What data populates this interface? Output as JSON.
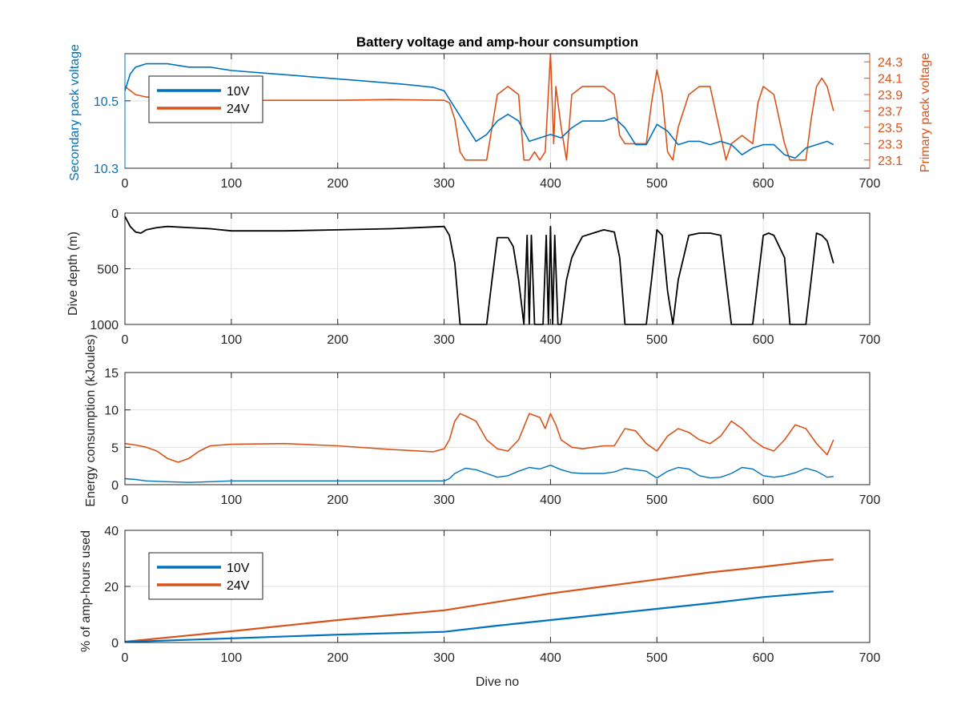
{
  "colors": {
    "v10": "#0072BD",
    "v24": "#D95319",
    "depth": "#000000"
  },
  "chart_data": [
    {
      "type": "line",
      "title": "Battery voltage and amp-hour consumption",
      "xlabel": "",
      "xlim": [
        0,
        700
      ],
      "xticks": [
        "0",
        "100",
        "200",
        "300",
        "400",
        "500",
        "600",
        "700"
      ],
      "ylabel_left": "Secondary pack voltage",
      "ylim_left": [
        10.3,
        10.64
      ],
      "yticks_left": [
        "10.3",
        "10.5"
      ],
      "ylabel_right": "Primary pack voltage",
      "ylim_right": [
        23.0,
        24.4
      ],
      "yticks_right": [
        "23.1",
        "23.3",
        "23.5",
        "23.7",
        "23.9",
        "24.1",
        "24.3"
      ],
      "legend": {
        "placement": "top-left",
        "entries": [
          "10V",
          "24V"
        ]
      },
      "grid": true,
      "series": [
        {
          "name": "10V",
          "axis": "left",
          "x": [
            0,
            5,
            10,
            20,
            40,
            60,
            80,
            100,
            140,
            180,
            220,
            260,
            290,
            300,
            310,
            320,
            330,
            340,
            350,
            360,
            370,
            380,
            390,
            400,
            410,
            420,
            430,
            440,
            450,
            460,
            470,
            480,
            490,
            500,
            510,
            520,
            530,
            540,
            550,
            560,
            570,
            580,
            590,
            600,
            610,
            620,
            630,
            640,
            650,
            660,
            666
          ],
          "y": [
            10.53,
            10.58,
            10.6,
            10.61,
            10.61,
            10.6,
            10.6,
            10.59,
            10.58,
            10.57,
            10.56,
            10.55,
            10.54,
            10.53,
            10.48,
            10.43,
            10.38,
            10.4,
            10.44,
            10.46,
            10.44,
            10.38,
            10.39,
            10.4,
            10.39,
            10.42,
            10.44,
            10.44,
            10.44,
            10.45,
            10.42,
            10.37,
            10.37,
            10.43,
            10.41,
            10.37,
            10.38,
            10.38,
            10.37,
            10.38,
            10.37,
            10.34,
            10.36,
            10.37,
            10.37,
            10.34,
            10.33,
            10.36,
            10.37,
            10.38,
            10.37
          ]
        },
        {
          "name": "24V",
          "axis": "right",
          "x": [
            0,
            10,
            20,
            40,
            60,
            80,
            100,
            150,
            200,
            250,
            300,
            305,
            310,
            315,
            320,
            330,
            340,
            345,
            350,
            360,
            370,
            375,
            380,
            385,
            390,
            395,
            400,
            403,
            405,
            410,
            415,
            420,
            430,
            440,
            450,
            460,
            465,
            470,
            480,
            490,
            495,
            500,
            505,
            510,
            515,
            520,
            530,
            540,
            550,
            560,
            565,
            570,
            580,
            590,
            595,
            600,
            610,
            620,
            625,
            630,
            640,
            645,
            650,
            655,
            660,
            666
          ],
          "y": [
            24.0,
            23.9,
            23.87,
            23.86,
            23.85,
            23.84,
            23.83,
            23.83,
            23.83,
            23.84,
            23.83,
            23.8,
            23.6,
            23.2,
            23.1,
            23.1,
            23.1,
            23.5,
            23.9,
            24.0,
            23.9,
            23.1,
            23.1,
            23.2,
            23.1,
            23.2,
            24.4,
            23.3,
            24.0,
            23.5,
            23.1,
            23.9,
            24.0,
            24.0,
            24.0,
            23.9,
            23.4,
            23.3,
            23.3,
            23.3,
            23.8,
            24.2,
            23.9,
            23.2,
            23.1,
            23.5,
            23.9,
            24.0,
            24.0,
            23.4,
            23.1,
            23.3,
            23.4,
            23.3,
            23.8,
            24.0,
            23.9,
            23.3,
            23.1,
            23.1,
            23.1,
            23.6,
            24.0,
            24.1,
            24.0,
            23.7
          ]
        }
      ]
    },
    {
      "type": "line",
      "title": "",
      "xlim": [
        0,
        700
      ],
      "xticks": [
        "0",
        "100",
        "200",
        "300",
        "400",
        "500",
        "600",
        "700"
      ],
      "ylabel": "Dive depth (m)",
      "ylim": [
        0,
        1000
      ],
      "yreverse": true,
      "yticks": [
        "0",
        "500",
        "1000"
      ],
      "grid": true,
      "series": [
        {
          "name": "",
          "x": [
            0,
            5,
            10,
            15,
            20,
            30,
            40,
            60,
            80,
            100,
            150,
            200,
            250,
            300,
            305,
            310,
            315,
            320,
            330,
            340,
            345,
            350,
            360,
            365,
            370,
            375,
            378,
            380,
            382,
            385,
            390,
            393,
            396,
            398,
            400,
            402,
            404,
            407,
            410,
            415,
            420,
            425,
            430,
            440,
            450,
            460,
            465,
            470,
            480,
            490,
            495,
            500,
            505,
            510,
            515,
            520,
            530,
            540,
            550,
            560,
            565,
            570,
            580,
            590,
            595,
            600,
            605,
            610,
            620,
            625,
            630,
            640,
            645,
            650,
            655,
            660,
            666
          ],
          "y": [
            30,
            120,
            170,
            180,
            150,
            130,
            120,
            130,
            140,
            160,
            160,
            150,
            140,
            120,
            200,
            450,
            1000,
            1000,
            1000,
            1000,
            600,
            220,
            220,
            300,
            600,
            1000,
            200,
            1000,
            200,
            1000,
            1000,
            1000,
            200,
            1000,
            120,
            1000,
            200,
            1000,
            1000,
            600,
            400,
            300,
            210,
            180,
            150,
            170,
            400,
            1000,
            1000,
            1000,
            600,
            150,
            200,
            700,
            1000,
            600,
            200,
            180,
            180,
            200,
            600,
            1000,
            1000,
            1000,
            600,
            200,
            180,
            200,
            400,
            1000,
            1000,
            1000,
            600,
            180,
            200,
            250,
            450
          ]
        }
      ]
    },
    {
      "type": "line",
      "title": "",
      "xlim": [
        0,
        700
      ],
      "xticks": [
        "0",
        "100",
        "200",
        "300",
        "400",
        "500",
        "600",
        "700"
      ],
      "ylabel": "Energy consumption (kJoules)",
      "ylim": [
        0,
        15
      ],
      "yticks": [
        "0",
        "5",
        "10",
        "15"
      ],
      "grid": true,
      "series": [
        {
          "name": "24V",
          "x": [
            0,
            10,
            20,
            30,
            40,
            50,
            60,
            70,
            80,
            100,
            150,
            200,
            250,
            290,
            300,
            305,
            310,
            315,
            320,
            330,
            340,
            350,
            360,
            370,
            380,
            390,
            395,
            400,
            405,
            410,
            420,
            430,
            440,
            450,
            460,
            470,
            480,
            490,
            500,
            510,
            520,
            530,
            540,
            550,
            560,
            570,
            580,
            590,
            600,
            610,
            620,
            630,
            640,
            650,
            660,
            666
          ],
          "y": [
            5.5,
            5.3,
            5,
            4.5,
            3.5,
            3.0,
            3.5,
            4.5,
            5.2,
            5.4,
            5.5,
            5.2,
            4.7,
            4.4,
            4.8,
            6,
            8.5,
            9.5,
            9.2,
            8.5,
            6,
            4.8,
            4.5,
            6,
            9.5,
            9,
            7.5,
            9.5,
            8,
            6,
            5,
            4.8,
            5,
            5.2,
            5.2,
            7.5,
            7.2,
            5.5,
            4.5,
            6.5,
            7.5,
            7.0,
            6,
            5.5,
            6.5,
            8.5,
            7.5,
            6,
            5,
            4.5,
            6,
            8.0,
            7.5,
            5.5,
            4.0,
            6.0
          ]
        },
        {
          "name": "10V",
          "x": [
            0,
            10,
            20,
            40,
            60,
            80,
            100,
            150,
            200,
            250,
            300,
            305,
            310,
            320,
            330,
            340,
            350,
            360,
            370,
            380,
            390,
            400,
            410,
            420,
            430,
            440,
            450,
            460,
            470,
            480,
            490,
            500,
            510,
            520,
            530,
            540,
            550,
            560,
            570,
            580,
            590,
            600,
            610,
            620,
            630,
            640,
            650,
            660,
            666
          ],
          "y": [
            0.8,
            0.7,
            0.5,
            0.4,
            0.3,
            0.4,
            0.5,
            0.5,
            0.5,
            0.5,
            0.5,
            0.8,
            1.5,
            2.2,
            2.0,
            1.5,
            1.0,
            1.2,
            1.8,
            2.3,
            2.1,
            2.6,
            2.0,
            1.6,
            1.5,
            1.5,
            1.5,
            1.7,
            2.2,
            2.0,
            1.8,
            0.9,
            1.8,
            2.3,
            2.1,
            1.2,
            0.9,
            1.0,
            1.5,
            2.3,
            2.1,
            1.2,
            1.0,
            1.2,
            1.6,
            2.2,
            1.8,
            1.0,
            1.1
          ]
        }
      ]
    },
    {
      "type": "line",
      "title": "",
      "xlabel": "Dive no",
      "xlim": [
        0,
        700
      ],
      "xticks": [
        "0",
        "100",
        "200",
        "300",
        "400",
        "500",
        "600",
        "700"
      ],
      "ylabel": "% of amp-hours used",
      "ylim": [
        0,
        40
      ],
      "yticks": [
        "0",
        "20",
        "40"
      ],
      "legend": {
        "placement": "top-left",
        "entries": [
          "10V",
          "24V"
        ]
      },
      "grid": true,
      "series": [
        {
          "name": "10V",
          "x": [
            0,
            100,
            200,
            300,
            350,
            400,
            450,
            500,
            550,
            600,
            650,
            666
          ],
          "y": [
            0.2,
            1.5,
            2.8,
            3.8,
            6,
            8,
            10,
            12,
            14,
            16.2,
            17.8,
            18.2
          ]
        },
        {
          "name": "24V",
          "x": [
            0,
            100,
            200,
            300,
            350,
            400,
            450,
            500,
            550,
            600,
            650,
            666
          ],
          "y": [
            0.3,
            4,
            8,
            11.5,
            14.5,
            17.5,
            20,
            22.5,
            25,
            27,
            29.2,
            29.6
          ]
        }
      ]
    }
  ]
}
